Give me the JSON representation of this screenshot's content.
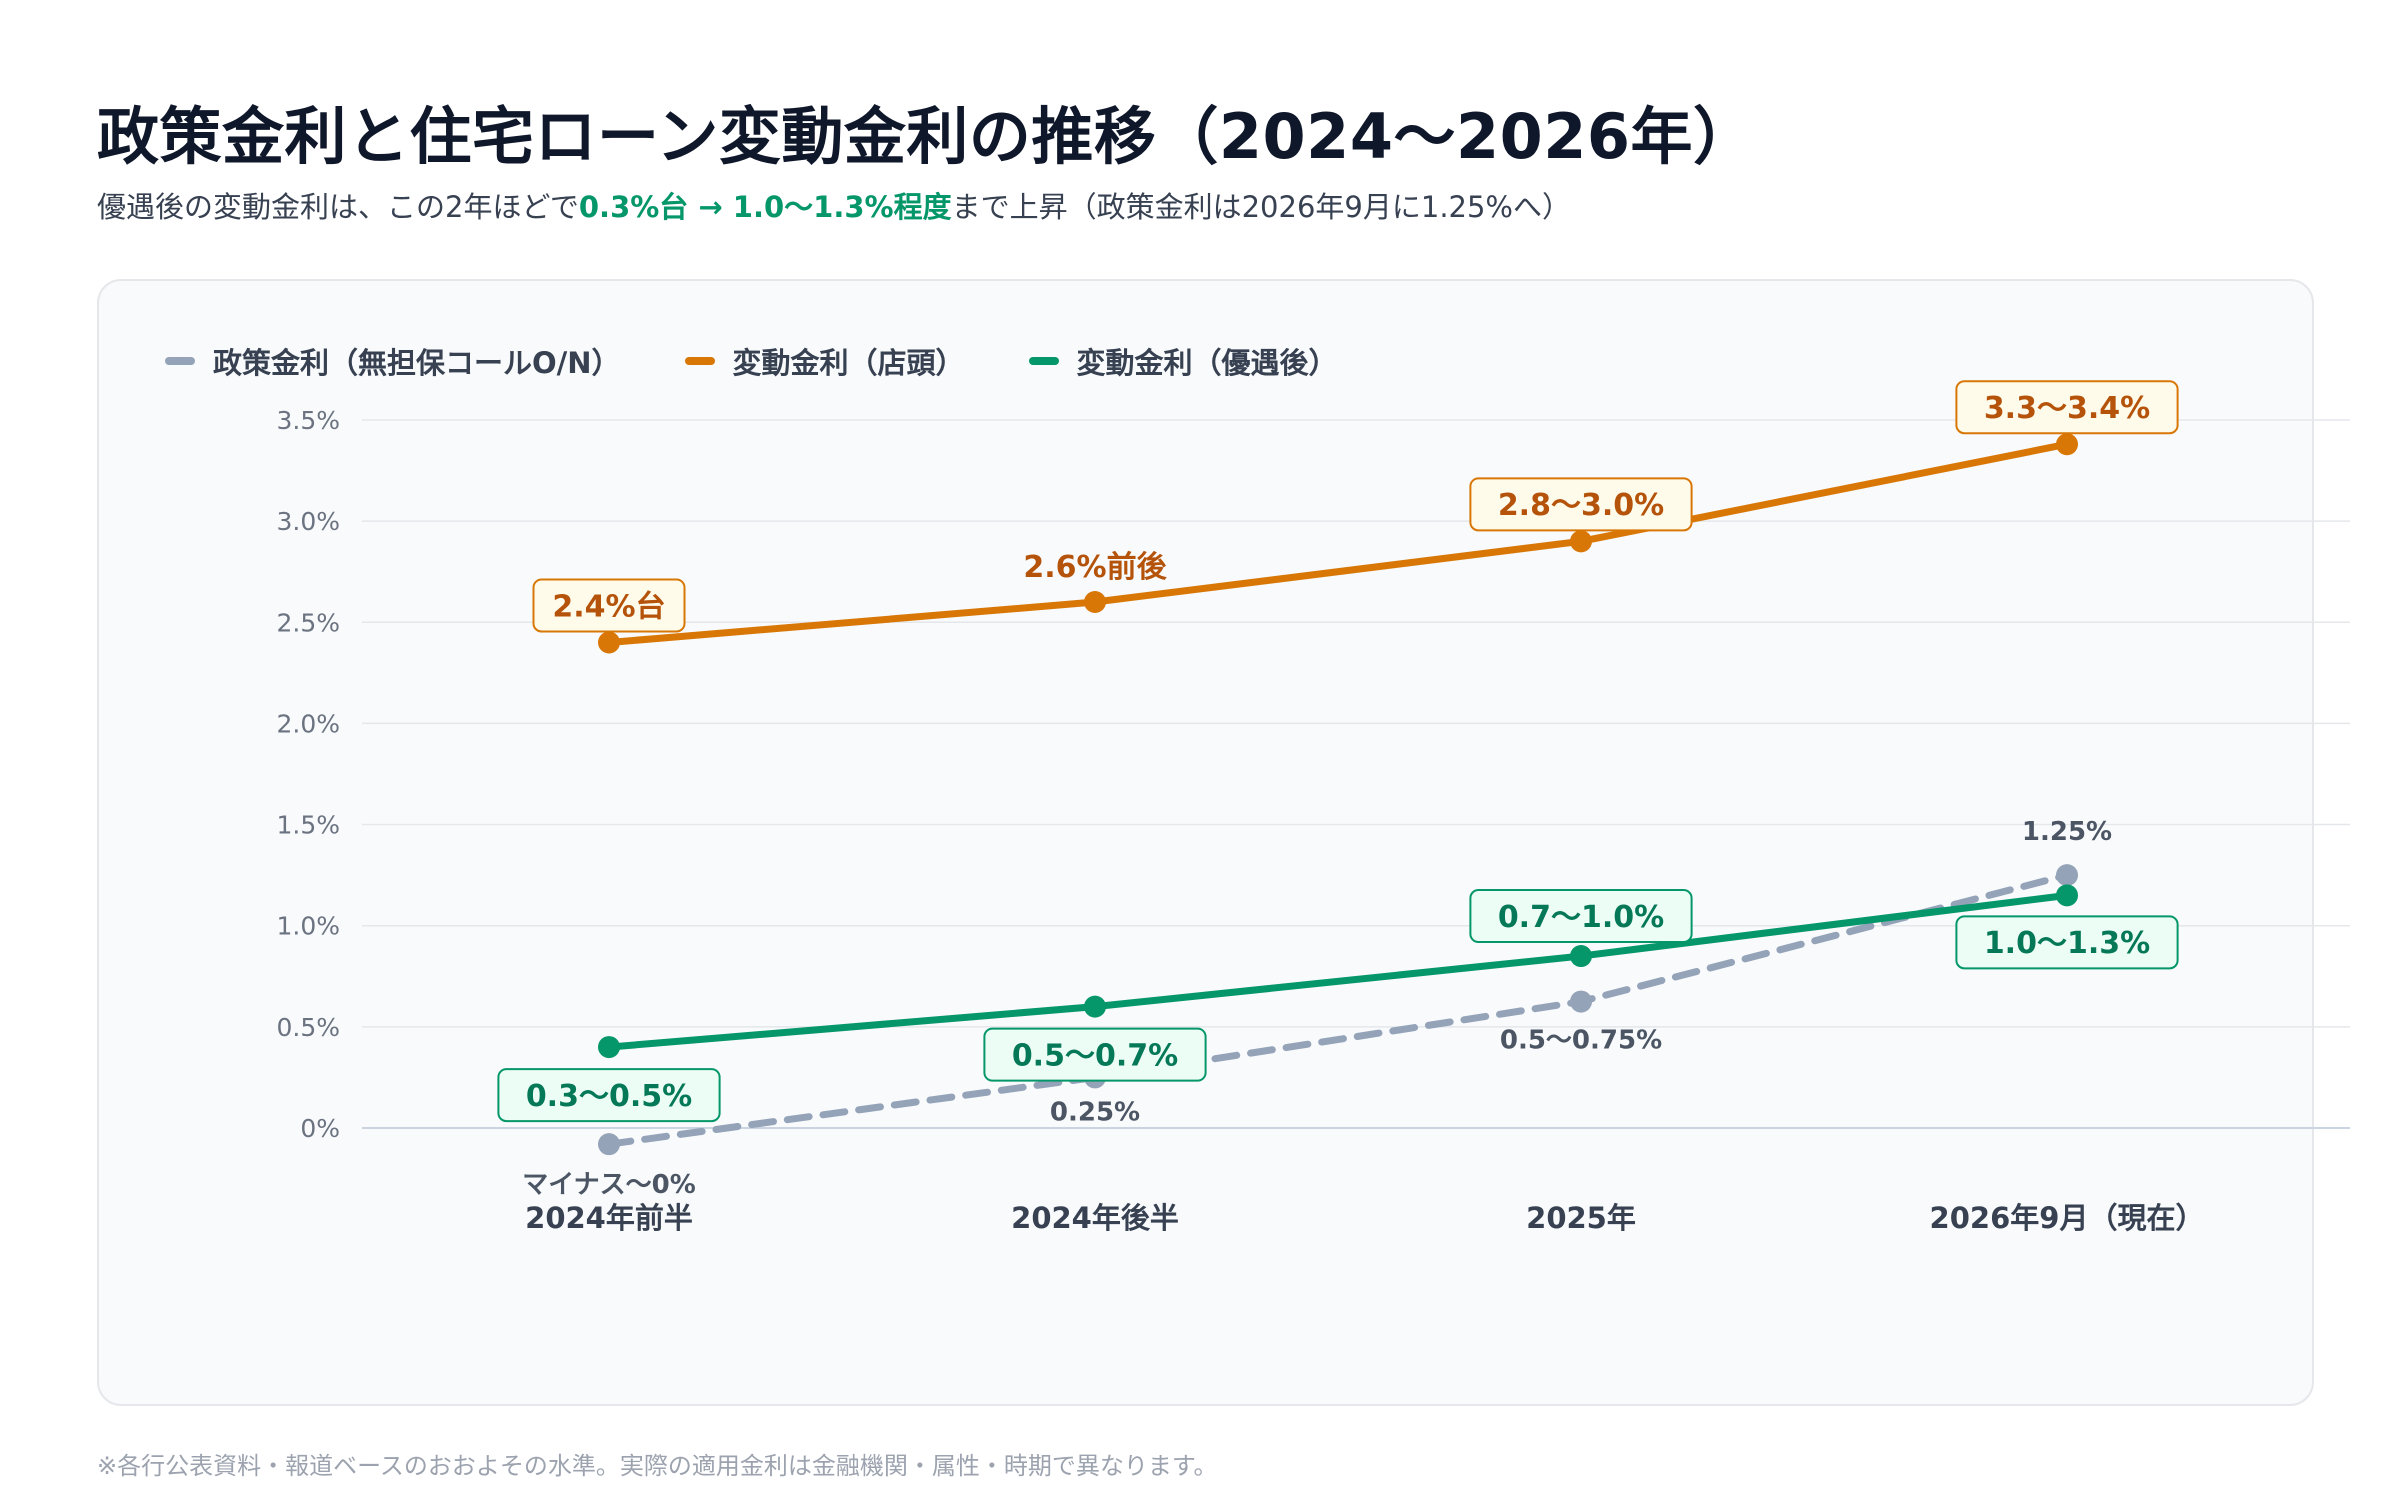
{
  "header": {
    "title": "政策金利と住宅ローン変動金利の推移（2024〜2026年）",
    "subtitle_pre": "優遇後の変動金利は、この2年ほどで",
    "subtitle_highlight": "0.3%台 → 1.0〜1.3%程度",
    "subtitle_post": "まで上昇（政策金利は2026年9月に1.25%へ）"
  },
  "footnote": "※各行公表資料・報道ベースのおおよその水準。実際の適用金利は金融機関・属性・時期で異なります。",
  "colors": {
    "policy": "#94a3b8",
    "store": "#d97706",
    "store_label": "#b45309",
    "preferential": "#059669",
    "preferential_label": "#047857",
    "grid": "#e5e7eb",
    "axis": "#cbd5e1",
    "tick": "#6b7280"
  },
  "chart_data": {
    "type": "line",
    "categories": [
      "2024年前半",
      "2024年後半",
      "2025年",
      "2026年9月（現在）"
    ],
    "yticks": [
      "0%",
      "0.5%",
      "1.0%",
      "1.5%",
      "2.0%",
      "2.5%",
      "3.0%",
      "3.5%"
    ],
    "ytick_values": [
      0,
      0.5,
      1.0,
      1.5,
      2.0,
      2.5,
      3.0,
      3.5
    ],
    "ylim": [
      0,
      3.5
    ],
    "grid": true,
    "legend": "top-left",
    "series": [
      {
        "name": "政策金利（無担保コールO/N）",
        "key": "policy",
        "values": [
          -0.08,
          0.25,
          0.625,
          1.25
        ],
        "labels": [
          "マイナス〜0%",
          "0.25%",
          "0.5〜0.75%",
          "1.25%"
        ],
        "dashed": true
      },
      {
        "name": "変動金利（店頭）",
        "key": "store",
        "values": [
          2.4,
          2.6,
          2.9,
          3.38
        ],
        "labels": [
          "2.4%台",
          "2.6%前後",
          "2.8〜3.0%",
          "3.3〜3.4%"
        ],
        "dashed": false
      },
      {
        "name": "変動金利（優遇後）",
        "key": "preferential",
        "values": [
          0.4,
          0.6,
          0.85,
          1.15
        ],
        "labels": [
          "0.3〜0.5%",
          "0.5〜0.7%",
          "0.7〜1.0%",
          "1.0〜1.3%"
        ],
        "dashed": false
      }
    ]
  }
}
